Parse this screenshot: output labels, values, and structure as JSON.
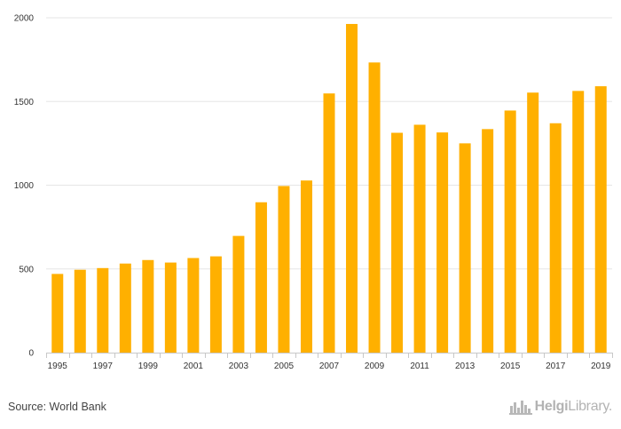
{
  "chart_data": {
    "type": "bar",
    "title": "",
    "xlabel": "",
    "ylabel": "",
    "ylim": [
      0,
      2000
    ],
    "yticks": [
      0,
      500,
      1000,
      1500,
      2000
    ],
    "grid": true,
    "color": "#ffb000",
    "categories": [
      "1995",
      "1996",
      "1997",
      "1998",
      "1999",
      "2000",
      "2001",
      "2002",
      "2003",
      "2004",
      "2005",
      "2006",
      "2007",
      "2008",
      "2009",
      "2010",
      "2011",
      "2012",
      "2013",
      "2014",
      "2015",
      "2016",
      "2017",
      "2018",
      "2019"
    ],
    "xtick_labels": [
      "1995",
      "1997",
      "1999",
      "2001",
      "2003",
      "2005",
      "2007",
      "2009",
      "2011",
      "2013",
      "2015",
      "2017",
      "2019"
    ],
    "values": [
      470,
      495,
      505,
      532,
      553,
      538,
      565,
      575,
      697,
      898,
      995,
      1028,
      1548,
      1963,
      1733,
      1313,
      1361,
      1315,
      1250,
      1335,
      1446,
      1553,
      1370,
      1563,
      1591
    ]
  },
  "footer": {
    "source": "Source: World Bank",
    "logo_text_bold": "Helgi",
    "logo_text": "Library."
  }
}
